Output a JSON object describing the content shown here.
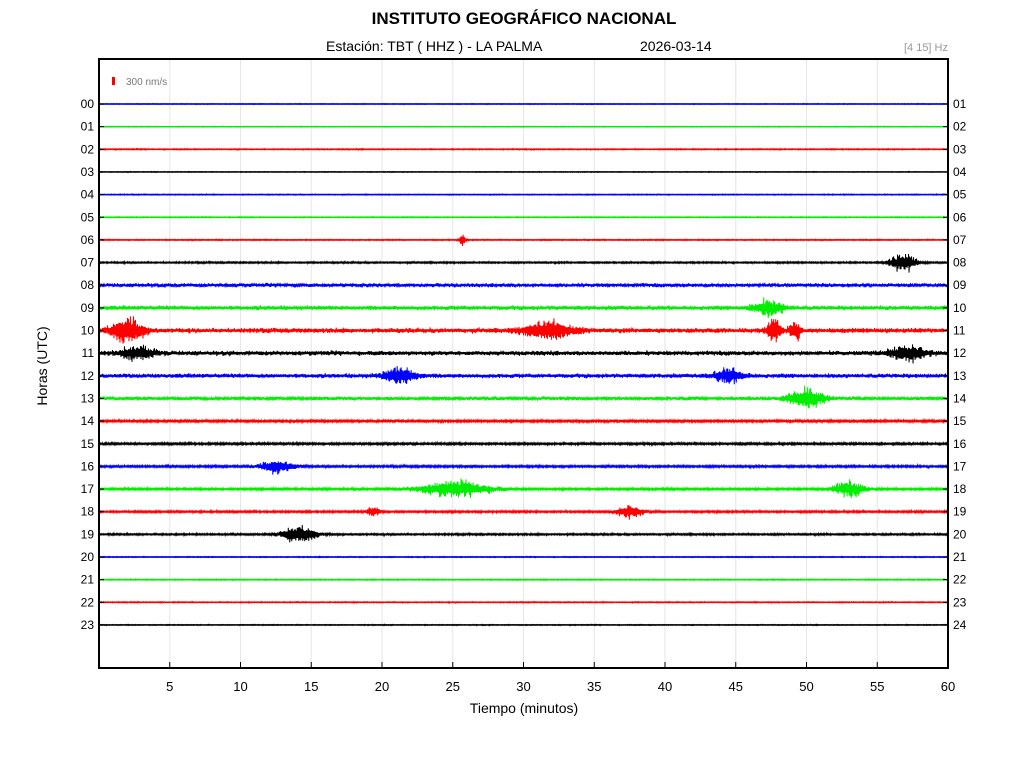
{
  "header": {
    "title": "INSTITUTO GEOGRÁFICO NACIONAL",
    "station": "Estación:  TBT ( HHZ ) - LA PALMA",
    "date": "2026-03-14",
    "band": "[4 15] Hz"
  },
  "chart_data": {
    "type": "line",
    "xlabel": "Tiempo (minutos)",
    "ylabel": "Horas (UTC)",
    "xlim": [
      0,
      60
    ],
    "x_ticks": [
      "5",
      "10",
      "15",
      "20",
      "25",
      "30",
      "35",
      "40",
      "45",
      "50",
      "55",
      "60"
    ],
    "y_ticks_left": [
      "00",
      "01",
      "02",
      "03",
      "04",
      "05",
      "06",
      "07",
      "08",
      "09",
      "10",
      "11",
      "12",
      "13",
      "14",
      "15",
      "16",
      "17",
      "18",
      "19",
      "20",
      "21",
      "22",
      "23"
    ],
    "y_ticks_right": [
      "01",
      "02",
      "03",
      "04",
      "05",
      "06",
      "07",
      "08",
      "09",
      "10",
      "11",
      "12",
      "13",
      "14",
      "15",
      "16",
      "17",
      "18",
      "19",
      "20",
      "21",
      "22",
      "23",
      "24"
    ],
    "grid": true,
    "scale_bar": {
      "label": "300 nm/s",
      "color": "#ff0000"
    },
    "trace_colors": [
      "#0000ff",
      "#00ee00",
      "#ff0000",
      "#000000"
    ],
    "traces": [
      {
        "hour": "00",
        "noise": 0.4,
        "events": []
      },
      {
        "hour": "01",
        "noise": 0.4,
        "events": []
      },
      {
        "hour": "02",
        "noise": 0.6,
        "events": []
      },
      {
        "hour": "03",
        "noise": 0.4,
        "events": []
      },
      {
        "hour": "04",
        "noise": 0.5,
        "events": []
      },
      {
        "hour": "05",
        "noise": 0.5,
        "events": []
      },
      {
        "hour": "06",
        "noise": 0.6,
        "events": [
          {
            "t": 25.7,
            "amp": 8,
            "dur": 0.4
          }
        ]
      },
      {
        "hour": "07",
        "noise": 0.9,
        "events": [
          {
            "t": 56.8,
            "amp": 9,
            "dur": 2.0
          }
        ]
      },
      {
        "hour": "08",
        "noise": 2.0,
        "events": []
      },
      {
        "hour": "09",
        "noise": 2.2,
        "events": [
          {
            "t": 47.3,
            "amp": 8,
            "dur": 2.2
          }
        ]
      },
      {
        "hour": "10",
        "noise": 2.6,
        "events": [
          {
            "t": 2.0,
            "amp": 14,
            "dur": 2.4
          },
          {
            "t": 31.8,
            "amp": 10,
            "dur": 3.6
          },
          {
            "t": 47.7,
            "amp": 13,
            "dur": 1.0
          },
          {
            "t": 49.2,
            "amp": 11,
            "dur": 0.8
          }
        ]
      },
      {
        "hour": "11",
        "noise": 2.4,
        "events": [
          {
            "t": 2.8,
            "amp": 7,
            "dur": 2.4
          },
          {
            "t": 57.2,
            "amp": 8,
            "dur": 2.6
          }
        ]
      },
      {
        "hour": "12",
        "noise": 2.2,
        "events": [
          {
            "t": 21.3,
            "amp": 8,
            "dur": 2.4
          },
          {
            "t": 44.5,
            "amp": 7,
            "dur": 2.2
          }
        ]
      },
      {
        "hour": "13",
        "noise": 1.8,
        "events": [
          {
            "t": 50.0,
            "amp": 11,
            "dur": 2.6
          }
        ]
      },
      {
        "hour": "14",
        "noise": 1.4,
        "events": []
      },
      {
        "hour": "15",
        "noise": 1.2,
        "events": []
      },
      {
        "hour": "16",
        "noise": 1.2,
        "events": [
          {
            "t": 12.6,
            "amp": 7,
            "dur": 2.6
          }
        ]
      },
      {
        "hour": "17",
        "noise": 1.2,
        "events": [
          {
            "t": 25.2,
            "amp": 8,
            "dur": 5.5
          },
          {
            "t": 53.0,
            "amp": 8,
            "dur": 2.4
          }
        ]
      },
      {
        "hour": "18",
        "noise": 1.1,
        "events": [
          {
            "t": 19.4,
            "amp": 5,
            "dur": 1.0
          },
          {
            "t": 37.5,
            "amp": 7,
            "dur": 2.0
          }
        ]
      },
      {
        "hour": "19",
        "noise": 1.0,
        "events": [
          {
            "t": 14.2,
            "amp": 9,
            "dur": 2.6
          }
        ]
      },
      {
        "hour": "20",
        "noise": 0.5,
        "events": []
      },
      {
        "hour": "21",
        "noise": 0.6,
        "events": []
      },
      {
        "hour": "22",
        "noise": 0.6,
        "events": []
      },
      {
        "hour": "23",
        "noise": 0.5,
        "events": []
      }
    ]
  }
}
